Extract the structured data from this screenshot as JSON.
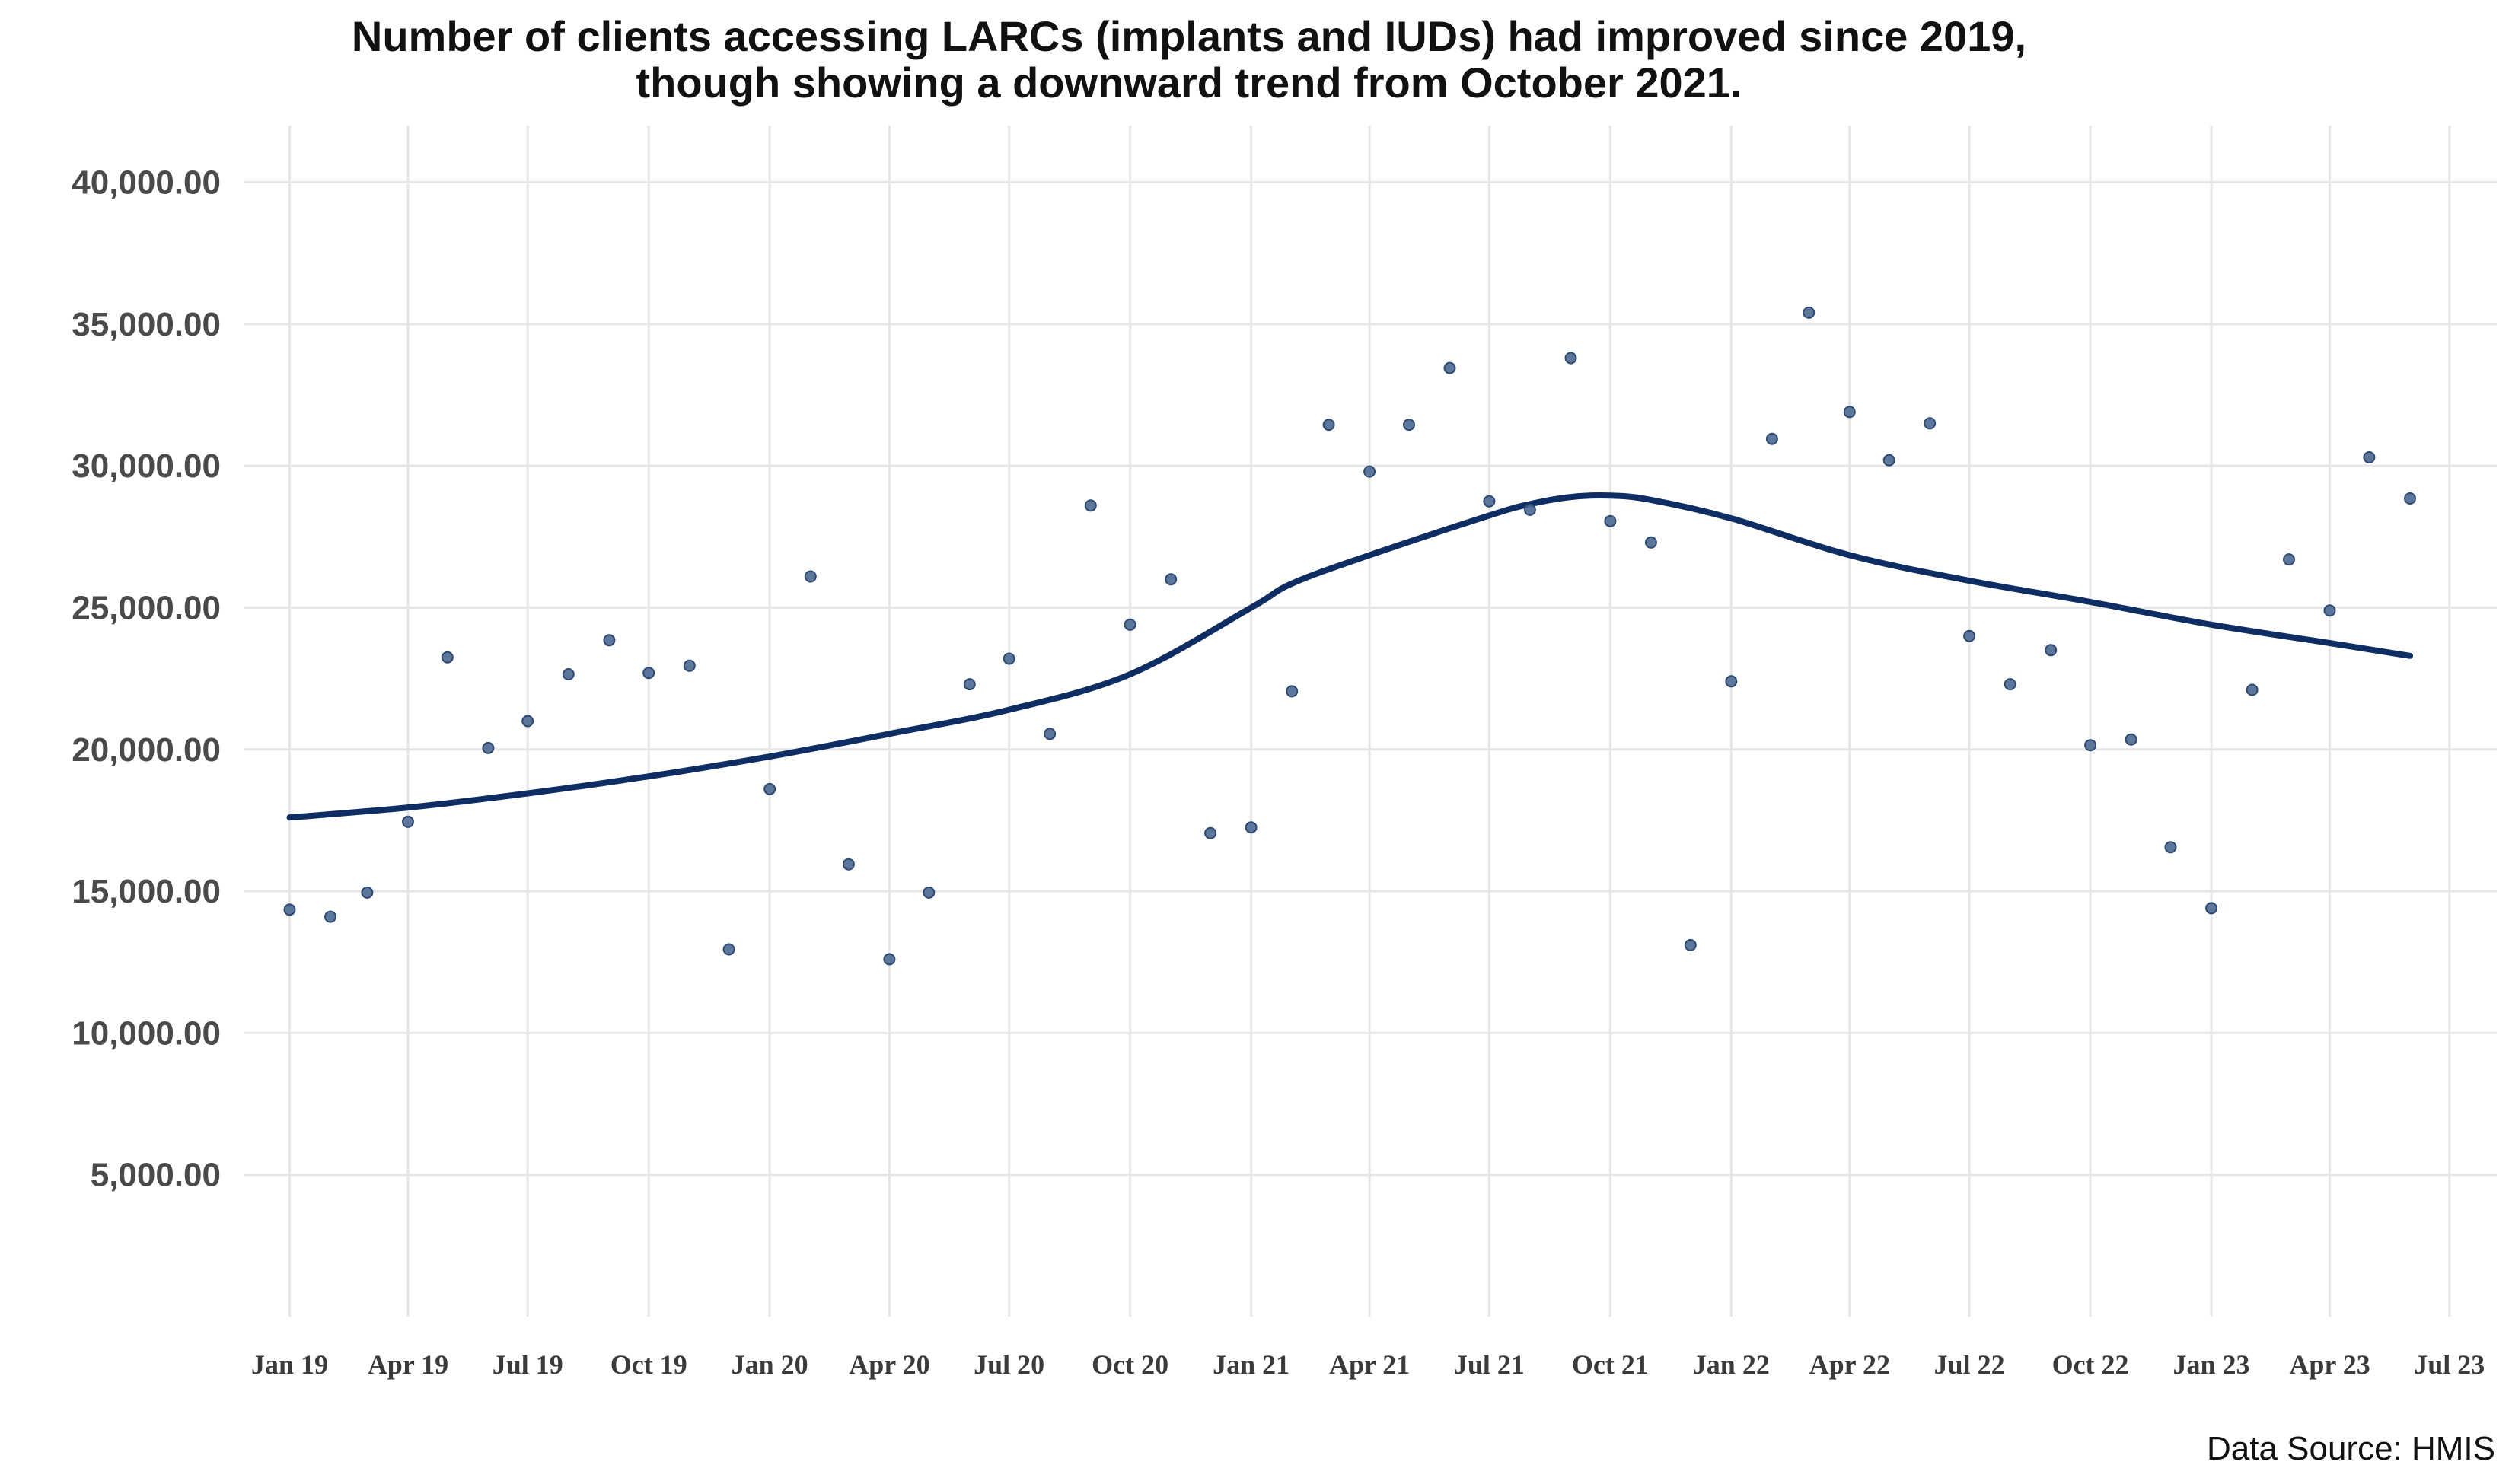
{
  "chart_data": {
    "type": "scatter",
    "title_lines": [
      "Number of clients accessing LARCs (implants and IUDs) had improved since 2019,",
      "though showing a downward trend from October 2021."
    ],
    "xlabel": "",
    "ylabel": "",
    "caption": "Data Source: HMIS",
    "ylim": [
      0,
      42000
    ],
    "xlim": [
      "2018-11-27",
      "2023-08-06"
    ],
    "y_ticks": [
      5000,
      10000,
      15000,
      20000,
      25000,
      30000,
      35000,
      40000
    ],
    "y_tick_labels": [
      "5,000.00",
      "10,000.00",
      "15,000.00",
      "20,000.00",
      "25,000.00",
      "30,000.00",
      "35,000.00",
      "40,000.00"
    ],
    "x_ticks": [
      "2019-01-01",
      "2019-04-01",
      "2019-07-01",
      "2019-10-01",
      "2020-01-01",
      "2020-04-01",
      "2020-07-01",
      "2020-10-01",
      "2021-01-01",
      "2021-04-01",
      "2021-07-01",
      "2021-10-01",
      "2022-01-01",
      "2022-04-01",
      "2022-07-01",
      "2022-10-01",
      "2023-01-01",
      "2023-04-01",
      "2023-07-01"
    ],
    "x_tick_labels": [
      "Jan 19",
      "Apr 19",
      "Jul 19",
      "Oct 19",
      "Jan 20",
      "Apr 20",
      "Jul 20",
      "Oct 20",
      "Jan 21",
      "Apr 21",
      "Jul 21",
      "Oct 21",
      "Jan 22",
      "Apr 22",
      "Jul 22",
      "Oct 22",
      "Jan 23",
      "Apr 23",
      "Jul 23"
    ],
    "grid": true,
    "points_color": "#4a6791",
    "trend_color": "#0d2d63",
    "points": {
      "x": [
        "2019-01-01",
        "2019-02-01",
        "2019-03-01",
        "2019-04-01",
        "2019-05-01",
        "2019-06-01",
        "2019-07-01",
        "2019-08-01",
        "2019-09-01",
        "2019-10-01",
        "2019-11-01",
        "2019-12-01",
        "2020-01-01",
        "2020-02-01",
        "2020-03-01",
        "2020-04-01",
        "2020-05-01",
        "2020-06-01",
        "2020-07-01",
        "2020-08-01",
        "2020-09-01",
        "2020-10-01",
        "2020-11-01",
        "2020-12-01",
        "2021-01-01",
        "2021-02-01",
        "2021-03-01",
        "2021-04-01",
        "2021-05-01",
        "2021-06-01",
        "2021-07-01",
        "2021-08-01",
        "2021-09-01",
        "2021-10-01",
        "2021-11-01",
        "2021-12-01",
        "2022-01-01",
        "2022-02-01",
        "2022-03-01",
        "2022-04-01",
        "2022-05-01",
        "2022-06-01",
        "2022-07-01",
        "2022-08-01",
        "2022-09-01",
        "2022-10-01",
        "2022-11-01",
        "2022-12-01",
        "2023-01-01",
        "2023-02-01",
        "2023-03-01",
        "2023-04-01",
        "2023-05-01",
        "2023-06-01"
      ],
      "y": [
        14350,
        14100,
        14950,
        17450,
        23250,
        20050,
        21000,
        22650,
        23850,
        22700,
        22950,
        12950,
        18600,
        26100,
        15950,
        12600,
        14950,
        22300,
        23200,
        20550,
        28600,
        24400,
        26000,
        17050,
        17250,
        22050,
        31450,
        29800,
        31450,
        33450,
        28750,
        28450,
        33800,
        28050,
        27300,
        13100,
        22400,
        30950,
        35400,
        31900,
        30200,
        31500,
        24000,
        22300,
        23500,
        20150,
        20350,
        16550,
        14400,
        22100,
        26700,
        24900,
        30300,
        28850
      ]
    },
    "trend": {
      "x": [
        "2019-01-01",
        "2019-04-01",
        "2019-07-01",
        "2019-10-01",
        "2020-01-01",
        "2020-04-01",
        "2020-07-01",
        "2020-10-01",
        "2021-01-01",
        "2021-02-01",
        "2021-04-01",
        "2021-07-01",
        "2021-08-01",
        "2021-09-01",
        "2021-10-01",
        "2021-11-01",
        "2022-01-01",
        "2022-04-01",
        "2022-07-01",
        "2022-10-01",
        "2023-01-01",
        "2023-04-01",
        "2023-06-01"
      ],
      "y": [
        17600,
        17950,
        18450,
        19050,
        19750,
        20550,
        21400,
        22650,
        25000,
        25850,
        26850,
        28250,
        28650,
        28900,
        28950,
        28800,
        28150,
        26850,
        25950,
        25200,
        24400,
        23750,
        23300
      ]
    }
  }
}
